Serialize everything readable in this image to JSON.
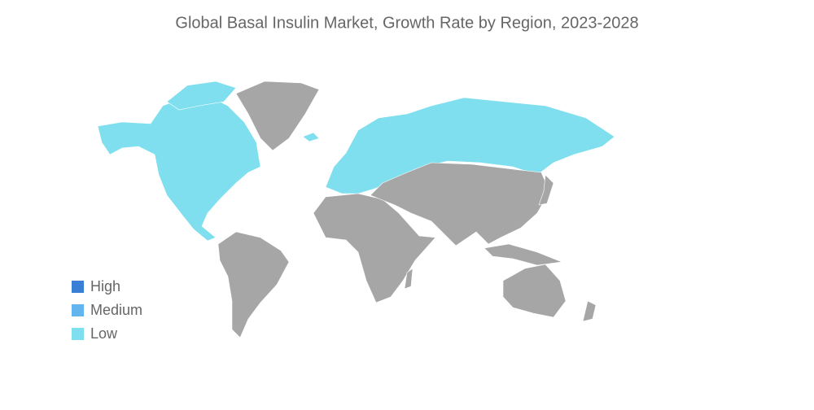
{
  "title": "Global Basal Insulin Market, Growth Rate by Region, 2023-2028",
  "legend": [
    {
      "label": "High",
      "color": "#3a7fd6"
    },
    {
      "label": "Medium",
      "color": "#63b5f0"
    },
    {
      "label": "Low",
      "color": "#7fdfee"
    }
  ],
  "other_color": "#a6a6a6"
}
